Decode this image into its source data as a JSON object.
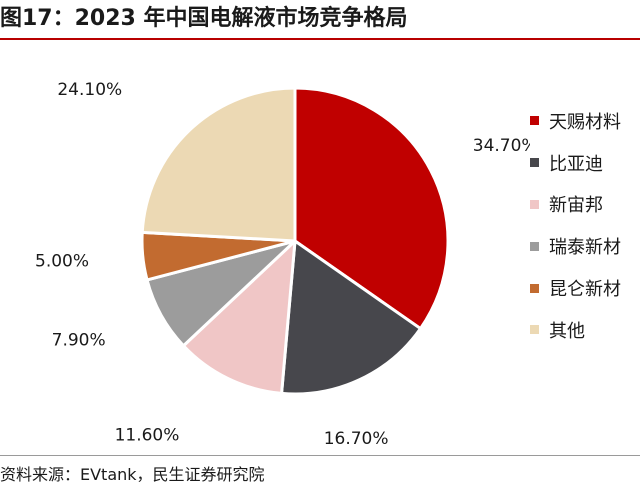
{
  "title": "图17：2023 年中国电解液市场竞争格局",
  "source": "资料来源：EVtank，民生证券研究院",
  "chart_data": {
    "type": "pie",
    "legend_position": "right",
    "slices": [
      {
        "name": "天赐材料",
        "value": 34.7,
        "label": "34.70%",
        "color": "#c00000"
      },
      {
        "name": "比亚迪",
        "value": 16.7,
        "label": "16.70%",
        "color": "#47474c"
      },
      {
        "name": "新宙邦",
        "value": 11.6,
        "label": "11.60%",
        "color": "#f0c6c6"
      },
      {
        "name": "瑞泰新材",
        "value": 7.9,
        "label": "7.90%",
        "color": "#9c9c9c"
      },
      {
        "name": "昆仑新材",
        "value": 5.0,
        "label": "5.00%",
        "color": "#c26b30"
      },
      {
        "name": "其他",
        "value": 24.1,
        "label": "24.10%",
        "color": "#ecd9b4"
      }
    ]
  }
}
